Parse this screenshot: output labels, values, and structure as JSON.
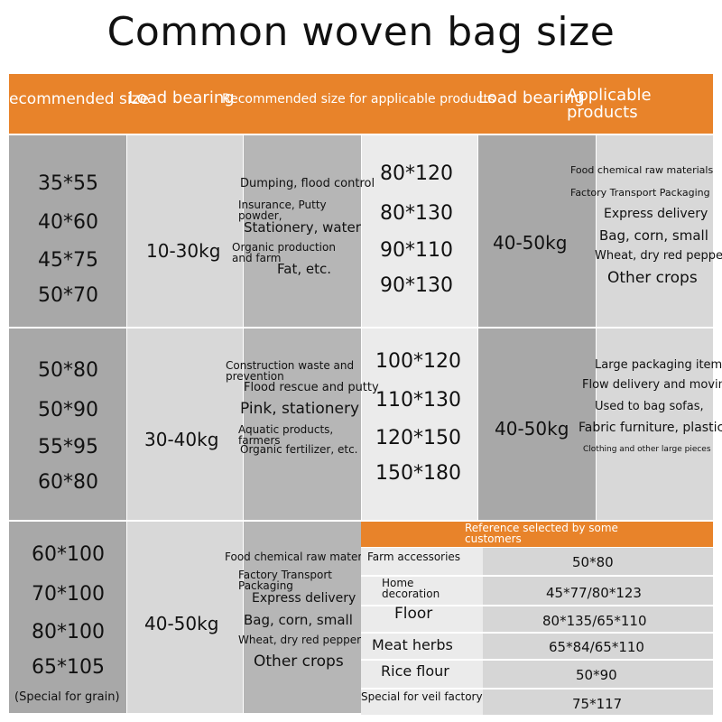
{
  "title": "Common woven bag size",
  "header": {
    "col1": "ecommended size",
    "col2": "Load bearing",
    "col3": "Recommended size for applicable products",
    "col4": "Load bearing",
    "col5": "Applicable products"
  },
  "row1": {
    "sizes": [
      "35*55",
      "40*60",
      "45*75",
      "50*70"
    ],
    "load": "10-30kg",
    "products": [
      "Dumping, flood control",
      "Insurance, Putty powder,",
      "Stationery, water",
      "Organic production and farm",
      "Fat, etc."
    ],
    "sizes_b": [
      "80*120",
      "80*130",
      "90*110",
      "90*130"
    ],
    "load_b": "40-50kg",
    "products_b": [
      "Food chemical raw materials",
      "Factory Transport Packaging",
      "Express delivery",
      "Bag, corn, small",
      "Wheat, dry red pepper",
      "Other crops"
    ]
  },
  "row2": {
    "sizes": [
      "50*80",
      "50*90",
      "55*95",
      "60*80"
    ],
    "load": "30-40kg",
    "products": [
      "Construction waste and prevention",
      "Flood rescue and putty",
      "Pink, stationery",
      "Aquatic products, farmers",
      "Organic fertilizer, etc."
    ],
    "sizes_b": [
      "100*120",
      "110*130",
      "120*150",
      "150*180"
    ],
    "load_b": "40-50kg",
    "products_b": [
      "Large packaging items",
      "Flow delivery and moving",
      "Used to bag sofas,",
      "Fabric furniture, plastic",
      "Clothing and other large pieces"
    ]
  },
  "row3": {
    "sizes": [
      "60*100",
      "70*100",
      "80*100",
      "65*105"
    ],
    "note": "(Special for grain)",
    "load": "40-50kg",
    "products": [
      "Food chemical raw materials",
      "Factory Transport Packaging",
      "Express delivery",
      "Bag, corn, small",
      "Wheat, dry red pepper",
      "Other crops"
    ]
  },
  "reference": {
    "title": "Reference selected by some customers",
    "rows": [
      {
        "label": "Farm accessories",
        "value": "50*80"
      },
      {
        "label": "Home decoration",
        "value": "45*77/80*123"
      },
      {
        "label": "Floor",
        "value": "80*135/65*110"
      },
      {
        "label": "Meat herbs",
        "value": "65*84/65*110"
      },
      {
        "label": "Rice flour",
        "value": "50*90"
      },
      {
        "label": "Special for veil factory",
        "value": "75*117"
      }
    ]
  },
  "colors": {
    "accent": "#e8832a",
    "dark_gray": "#a8a8a8",
    "light_gray": "#d8d8d8"
  }
}
